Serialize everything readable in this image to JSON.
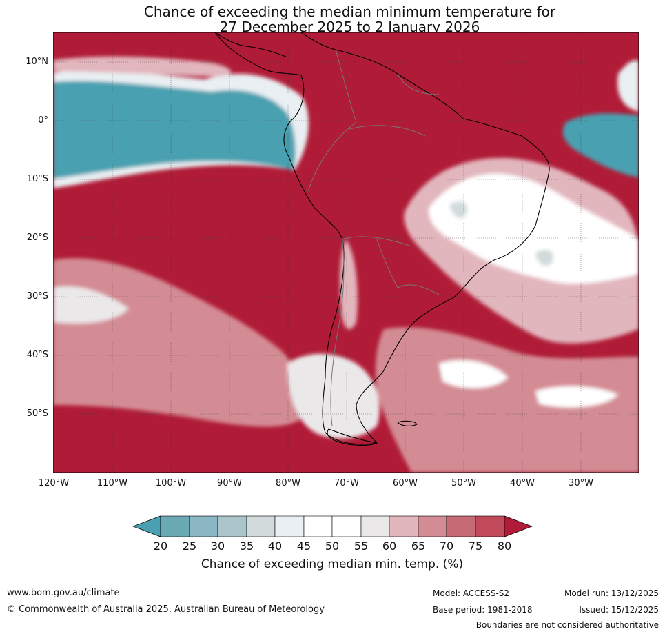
{
  "title": {
    "line1": "Chance of exceeding the median minimum temperature for",
    "line2": "27 December 2025 to 2 January 2026"
  },
  "map": {
    "region": "South America",
    "latitude_labels": [
      "10°N",
      "0°",
      "10°S",
      "20°S",
      "30°S",
      "40°S",
      "50°S"
    ],
    "longitude_labels": [
      "120°W",
      "110°W",
      "100°W",
      "90°W",
      "80°W",
      "70°W",
      "60°W",
      "50°W",
      "40°W",
      "30°W"
    ]
  },
  "colorbar": {
    "ticks": [
      "20",
      "25",
      "30",
      "35",
      "40",
      "45",
      "50",
      "55",
      "60",
      "65",
      "70",
      "75",
      "80"
    ],
    "colors": [
      "#4aa0b0",
      "#6ba9b5",
      "#8bb7c4",
      "#abc6cb",
      "#d2dadb",
      "#e9eff2",
      "#ffffff",
      "#ffffff",
      "#ebe8ea",
      "#e2b6bd",
      "#d48c94",
      "#c66a76",
      "#c04a59",
      "#b01c37"
    ],
    "label": "Chance of exceeding median min. temp. (%)"
  },
  "footer": {
    "website": "www.bom.gov.au/climate",
    "copyright": "© Commonwealth of Australia 2025, Australian Bureau of Meteorology",
    "model": "Model: ACCESS-S2",
    "base_period": "Base period: 1981-2018",
    "model_run": "Model run: 13/12/2025",
    "issued": "Issued: 15/12/2025",
    "disclaimer": "Boundaries are not considered authoritative"
  }
}
